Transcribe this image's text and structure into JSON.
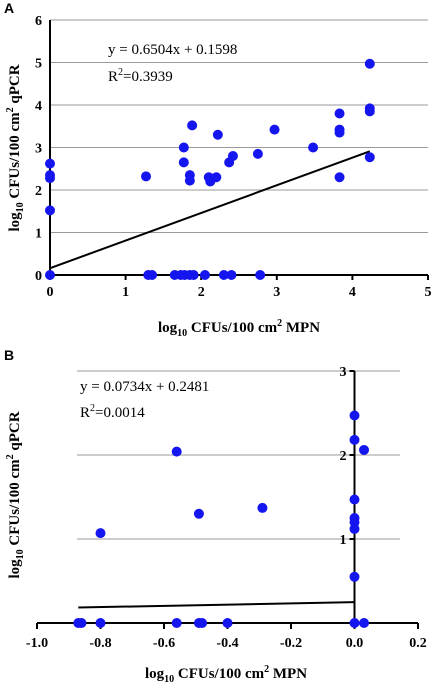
{
  "chart_data": [
    {
      "panel": "A",
      "type": "scatter",
      "xlabel_main": "log",
      "xlabel_sub": "10",
      "xlabel_mid": " CFUs/100 cm",
      "xlabel_sup": "2",
      "xlabel_end": " MPN",
      "ylabel_main": "log",
      "ylabel_sub": "10",
      "ylabel_mid": " CFUs/100 cm",
      "ylabel_sup": "2",
      "ylabel_end": " qPCR",
      "xlim": [
        0,
        5
      ],
      "ylim": [
        0,
        6
      ],
      "xticks": [
        0,
        1,
        2,
        3,
        4,
        5
      ],
      "yticks": [
        0,
        1,
        2,
        3,
        4,
        5,
        6
      ],
      "grid": "horizontal",
      "equation": "y = 0.6504x + 0.1598",
      "r2_prefix": "R",
      "r2_sup": "2",
      "r2_suffix": "=0.3939",
      "fit": {
        "slope": 0.6504,
        "intercept": 0.1598,
        "x_range": [
          0,
          4.23
        ]
      },
      "points": [
        [
          0,
          2.62
        ],
        [
          0,
          2.35
        ],
        [
          0,
          2.28
        ],
        [
          0,
          1.52
        ],
        [
          0,
          0
        ],
        [
          1.27,
          2.32
        ],
        [
          1.3,
          0
        ],
        [
          1.35,
          0
        ],
        [
          1.65,
          0
        ],
        [
          1.73,
          0
        ],
        [
          1.78,
          0
        ],
        [
          1.85,
          0
        ],
        [
          1.9,
          0
        ],
        [
          1.77,
          3.0
        ],
        [
          1.77,
          2.65
        ],
        [
          1.85,
          2.35
        ],
        [
          1.85,
          2.22
        ],
        [
          1.88,
          3.52
        ],
        [
          2.05,
          0
        ],
        [
          2.1,
          2.3
        ],
        [
          2.12,
          2.2
        ],
        [
          2.2,
          2.3
        ],
        [
          2.22,
          3.3
        ],
        [
          2.3,
          0
        ],
        [
          2.4,
          0
        ],
        [
          2.37,
          2.65
        ],
        [
          2.42,
          2.8
        ],
        [
          2.75,
          2.85
        ],
        [
          2.78,
          0
        ],
        [
          2.97,
          3.42
        ],
        [
          3.48,
          3.0
        ],
        [
          3.83,
          3.8
        ],
        [
          3.83,
          3.42
        ],
        [
          3.83,
          3.35
        ],
        [
          3.83,
          2.3
        ],
        [
          4.23,
          4.97
        ],
        [
          4.23,
          3.92
        ],
        [
          4.23,
          3.85
        ],
        [
          4.23,
          2.77
        ]
      ]
    },
    {
      "panel": "B",
      "type": "scatter",
      "xlabel_main": "log",
      "xlabel_sub": "10",
      "xlabel_mid": " CFUs/100 cm",
      "xlabel_sup": "2",
      "xlabel_end": " MPN",
      "ylabel_main": "log",
      "ylabel_sub": "10",
      "ylabel_mid": " CFUs/100 cm",
      "ylabel_sup": "2",
      "ylabel_end": " qPCR",
      "xlim": [
        -1.0,
        0.2
      ],
      "ylim": [
        0,
        3
      ],
      "xticks": [
        "-1.0",
        "-0.8",
        "-0.6",
        "-0.4",
        "-0.2",
        "0.0",
        "0.2"
      ],
      "yticks": [
        "1",
        "2",
        "3"
      ],
      "grid": "horizontal",
      "equation": "y = 0.0734x + 0.2481",
      "r2_prefix": "R",
      "r2_sup": "2",
      "r2_suffix": "=0.0014",
      "fit": {
        "slope": 0.0734,
        "intercept": 0.2481,
        "x_range": [
          -0.87,
          0.0
        ]
      },
      "points": [
        [
          -0.87,
          0
        ],
        [
          -0.86,
          0
        ],
        [
          -0.8,
          0
        ],
        [
          -0.8,
          1.07
        ],
        [
          -0.56,
          0
        ],
        [
          -0.56,
          2.04
        ],
        [
          -0.49,
          0
        ],
        [
          -0.48,
          0
        ],
        [
          -0.49,
          1.3
        ],
        [
          -0.4,
          0
        ],
        [
          -0.29,
          1.37
        ],
        [
          0,
          2.47
        ],
        [
          0,
          2.18
        ],
        [
          0,
          1.47
        ],
        [
          0,
          1.25
        ],
        [
          0,
          1.2
        ],
        [
          0,
          1.12
        ],
        [
          0,
          0.55
        ],
        [
          0,
          0
        ],
        [
          0.03,
          2.06
        ],
        [
          0.03,
          0
        ]
      ]
    }
  ]
}
